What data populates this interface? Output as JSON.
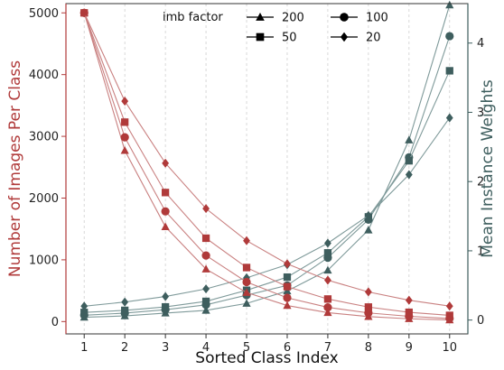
{
  "chart_data": {
    "type": "line",
    "x": [
      1,
      2,
      3,
      4,
      5,
      6,
      7,
      8,
      9,
      10
    ],
    "xlabel": "Sorted Class Index",
    "ylabel_left": "Number of Images Per Class",
    "ylabel_right": "Mean Instance Weights",
    "ylim_left": [
      -200,
      5150
    ],
    "ylim_right": [
      -0.2,
      4.57
    ],
    "yticks_left": [
      0,
      1000,
      2000,
      3000,
      4000,
      5000
    ],
    "yticks_right": [
      0,
      1,
      2,
      3,
      4
    ],
    "xticks": [
      1,
      2,
      3,
      4,
      5,
      6,
      7,
      8,
      9,
      10
    ],
    "grid": "x-dashed",
    "legend": {
      "title": "imb factor",
      "placement": "top-center",
      "columns": 2
    },
    "colors": {
      "left": "#b03a3a",
      "right": "#3e5e5e",
      "left_line": "#c98080",
      "right_line": "#7f9a9a"
    },
    "series": [
      {
        "name": "200",
        "marker": "triangle",
        "images": [
          5000,
          2770,
          1535,
          850,
          470,
          260,
          145,
          80,
          45,
          25
        ],
        "weights": [
          0.04,
          0.06,
          0.1,
          0.14,
          0.24,
          0.42,
          0.72,
          1.3,
          2.6,
          4.55
        ]
      },
      {
        "name": "100",
        "marker": "circle",
        "images": [
          5000,
          2985,
          1785,
          1070,
          640,
          385,
          230,
          140,
          85,
          50
        ],
        "weights": [
          0.07,
          0.1,
          0.15,
          0.22,
          0.36,
          0.5,
          0.9,
          1.45,
          2.35,
          4.1
        ]
      },
      {
        "name": "50",
        "marker": "square",
        "images": [
          5000,
          3230,
          2090,
          1350,
          875,
          565,
          365,
          235,
          150,
          100
        ],
        "weights": [
          0.11,
          0.14,
          0.19,
          0.27,
          0.43,
          0.62,
          0.97,
          1.49,
          2.3,
          3.6
        ]
      },
      {
        "name": "20",
        "marker": "diamond",
        "images": [
          5000,
          3570,
          2565,
          1830,
          1310,
          935,
          670,
          480,
          345,
          250
        ],
        "weights": [
          0.2,
          0.26,
          0.34,
          0.45,
          0.61,
          0.8,
          1.11,
          1.51,
          2.1,
          2.92
        ]
      }
    ]
  }
}
